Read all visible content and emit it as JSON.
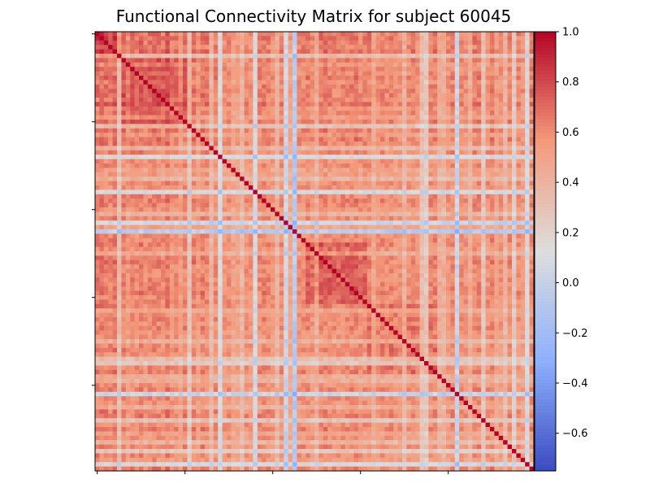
{
  "chart_data": {
    "type": "heatmap",
    "title": "Functional Connectivity Matrix for subject 60045",
    "colormap": "coolwarm",
    "vmin": -0.75,
    "vmax": 1.0,
    "n": 100,
    "colorbar_ticks": [
      {
        "value": 1.0,
        "label": "1.0"
      },
      {
        "value": 0.8,
        "label": "0.8"
      },
      {
        "value": 0.6,
        "label": "0.6"
      },
      {
        "value": 0.4,
        "label": "0.4"
      },
      {
        "value": 0.2,
        "label": "0.2"
      },
      {
        "value": 0.0,
        "label": "0.0"
      },
      {
        "value": -0.2,
        "label": "−0.2"
      },
      {
        "value": -0.4,
        "label": "−0.4"
      },
      {
        "value": -0.6,
        "label": "−0.6"
      }
    ],
    "x_ticks": [
      0,
      20,
      40,
      60,
      80
    ],
    "y_ticks": [
      0,
      20,
      40,
      60,
      80
    ],
    "x_tick_labels_shown": false,
    "y_tick_labels_shown": false,
    "diagonal_value": 1.0,
    "node_mean_connectivity": [
      0.68,
      0.7,
      0.66,
      0.62,
      0.72,
      0.36,
      0.65,
      0.55,
      0.64,
      0.6,
      0.66,
      0.58,
      0.62,
      0.66,
      0.64,
      0.6,
      0.7,
      0.58,
      0.6,
      0.52,
      0.62,
      0.32,
      0.64,
      0.54,
      0.66,
      0.62,
      0.4,
      0.6,
      0.18,
      0.55,
      0.58,
      0.5,
      0.52,
      0.4,
      0.58,
      0.56,
      0.15,
      0.6,
      0.62,
      0.6,
      0.56,
      0.42,
      0.58,
      0.1,
      0.48,
      0.0,
      0.58,
      0.6,
      0.62,
      0.56,
      0.45,
      0.62,
      0.63,
      0.6,
      0.58,
      0.58,
      0.61,
      0.6,
      0.62,
      0.64,
      0.58,
      0.6,
      0.62,
      0.48,
      0.56,
      0.6,
      0.57,
      0.6,
      0.55,
      0.56,
      0.42,
      0.58,
      0.6,
      0.56,
      0.35,
      0.3,
      0.6,
      0.62,
      0.46,
      0.44,
      0.56,
      0.6,
      0.08,
      0.58,
      0.56,
      0.44,
      0.6,
      0.62,
      0.32,
      0.58,
      0.62,
      0.5,
      0.56,
      0.4,
      0.6,
      0.3,
      0.58,
      0.54,
      0.18,
      0.62
    ],
    "modules": [
      {
        "start": 0,
        "end": 6,
        "strength": 0.12
      },
      {
        "start": 6,
        "end": 22,
        "strength": 0.1
      },
      {
        "start": 48,
        "end": 62,
        "strength": 0.12
      },
      {
        "start": 62,
        "end": 78,
        "strength": 0.08
      }
    ]
  }
}
